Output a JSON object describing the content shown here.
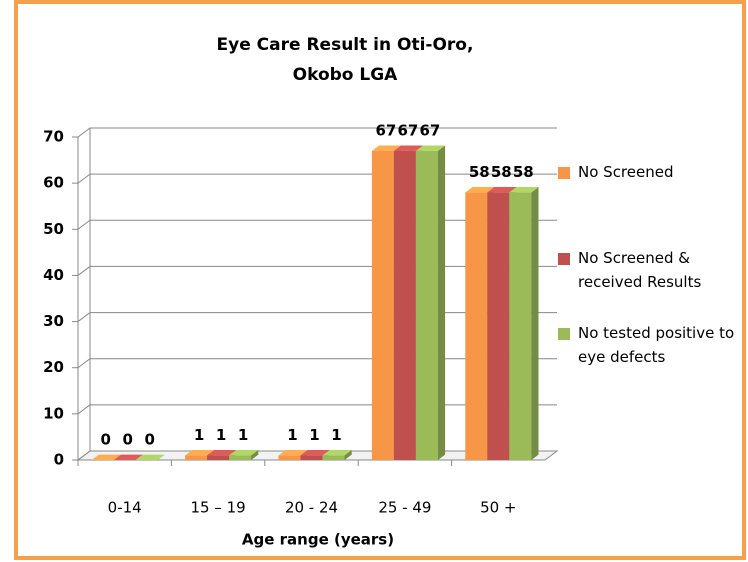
{
  "chart_data": {
    "type": "bar3d",
    "title": "Eye Care Result in Oti-Oro, Okobo LGA",
    "x_label": "Age range (years)",
    "categories": [
      "0-14",
      "15 – 19",
      "20 - 24",
      "25 - 49",
      "50 +"
    ],
    "series": [
      {
        "name": "No Screened",
        "color": "#f79646",
        "values": [
          0,
          1,
          1,
          67,
          58
        ]
      },
      {
        "name": "No Screened & received Results",
        "color": "#c0504d",
        "values": [
          0,
          1,
          1,
          67,
          58
        ]
      },
      {
        "name": "No tested positive to eye defects",
        "color": "#9bbb59",
        "values": [
          0,
          1,
          1,
          67,
          58
        ]
      }
    ],
    "ylim": [
      0,
      70
    ],
    "yticks": [
      0,
      10,
      20,
      30,
      40,
      50,
      60,
      70
    ],
    "grid": true,
    "legend": "right"
  }
}
